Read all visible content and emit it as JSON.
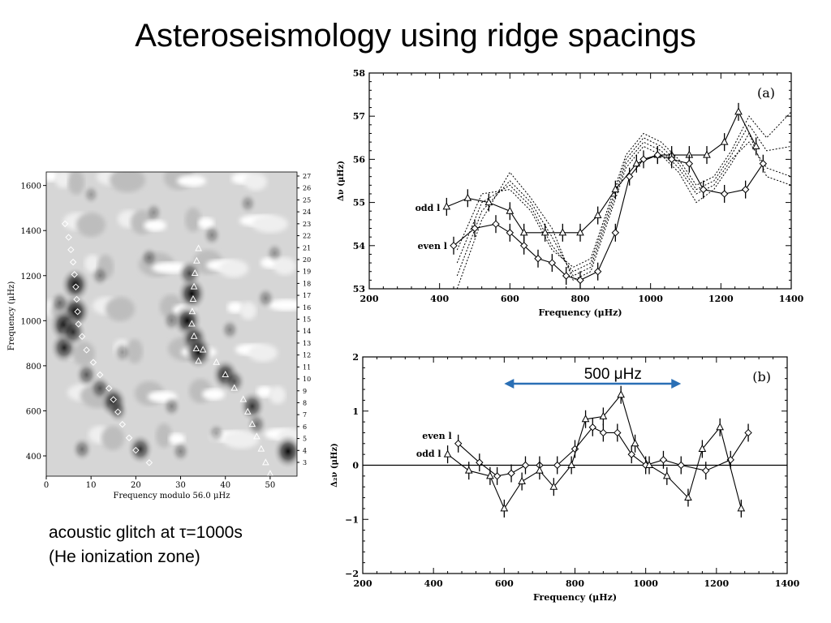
{
  "slide": {
    "title": "Asteroseismology using ridge spacings"
  },
  "caption": {
    "line1": "acoustic glitch at τ=1000s",
    "line2": "(He ionization zone)"
  },
  "colors": {
    "arrow": "#2a6fb5",
    "ink": "#000000"
  },
  "chart_data": [
    {
      "id": "echelle",
      "type": "heatmap",
      "xlabel": "Frequency modulo 56.0 μHz",
      "ylabel": "Frequency (μHz)",
      "xlim": [
        0,
        56
      ],
      "ylim": [
        310,
        1660
      ],
      "xticks": [
        "0",
        "10",
        "20",
        "30",
        "40",
        "50"
      ],
      "yticks": [
        "400",
        "600",
        "800",
        "1000",
        "1200",
        "1400",
        "1600"
      ],
      "right_ticks": [
        "3",
        "4",
        "5",
        "6",
        "7",
        "8",
        "9",
        "10",
        "11",
        "12",
        "13",
        "14",
        "15",
        "16",
        "17",
        "18",
        "19",
        "20",
        "21",
        "22",
        "23",
        "24",
        "25",
        "26",
        "27"
      ],
      "series": [
        {
          "marker": "diamond",
          "x": [
            4.2,
            5,
            5.5,
            6,
            6.3,
            6.6,
            6.8,
            7,
            7.2,
            8,
            9,
            10.5,
            12,
            14,
            15,
            16,
            17,
            18.5,
            20,
            23
          ],
          "y": [
            1430,
            1370,
            1315,
            1260,
            1205,
            1150,
            1095,
            1040,
            985,
            930,
            870,
            815,
            760,
            700,
            650,
            595,
            540,
            480,
            425,
            370
          ]
        },
        {
          "marker": "triangle",
          "x": [
            34,
            33.6,
            33.2,
            33,
            32.8,
            32.6,
            32.5,
            33,
            33.5,
            34,
            35,
            38,
            40,
            42,
            44,
            45,
            46,
            47,
            48,
            49,
            50
          ],
          "y": [
            1320,
            1265,
            1210,
            1150,
            1095,
            1040,
            985,
            930,
            875,
            820,
            870,
            815,
            760,
            700,
            650,
            595,
            540,
            485,
            430,
            370,
            320
          ]
        }
      ],
      "blobs": [
        {
          "x": 6.5,
          "y": 1160,
          "v": 1
        },
        {
          "x": 6.5,
          "y": 1040,
          "v": 1
        },
        {
          "x": 4,
          "y": 980,
          "v": 1
        },
        {
          "x": 4,
          "y": 880,
          "v": 0.9
        },
        {
          "x": 6,
          "y": 950,
          "v": 0.8
        },
        {
          "x": 9,
          "y": 760,
          "v": 0.6
        },
        {
          "x": 12,
          "y": 700,
          "v": 0.6
        },
        {
          "x": 15,
          "y": 640,
          "v": 0.9
        },
        {
          "x": 16,
          "y": 600,
          "v": 0.5
        },
        {
          "x": 21,
          "y": 430,
          "v": 0.8
        },
        {
          "x": 32.5,
          "y": 1120,
          "v": 1
        },
        {
          "x": 31.5,
          "y": 1000,
          "v": 1
        },
        {
          "x": 33,
          "y": 920,
          "v": 0.9
        },
        {
          "x": 34,
          "y": 860,
          "v": 1
        },
        {
          "x": 32,
          "y": 1210,
          "v": 0.7
        },
        {
          "x": 40,
          "y": 760,
          "v": 0.9
        },
        {
          "x": 42,
          "y": 730,
          "v": 0.6
        },
        {
          "x": 46,
          "y": 620,
          "v": 0.8
        },
        {
          "x": 47,
          "y": 540,
          "v": 0.5
        },
        {
          "x": 54,
          "y": 420,
          "v": 1
        },
        {
          "x": 3,
          "y": 1080,
          "v": 0.5
        },
        {
          "x": 28,
          "y": 1000,
          "v": 0.4
        },
        {
          "x": 37,
          "y": 1380,
          "v": 0.4
        },
        {
          "x": 12,
          "y": 1200,
          "v": 0.4
        },
        {
          "x": 23,
          "y": 1280,
          "v": 0.4
        },
        {
          "x": 49,
          "y": 1100,
          "v": 0.4
        },
        {
          "x": 51,
          "y": 1300,
          "v": 0.35
        },
        {
          "x": 28,
          "y": 620,
          "v": 0.4
        },
        {
          "x": 17,
          "y": 860,
          "v": 0.4
        },
        {
          "x": 41,
          "y": 960,
          "v": 0.4
        },
        {
          "x": 24,
          "y": 1480,
          "v": 0.35
        },
        {
          "x": 45,
          "y": 1520,
          "v": 0.35
        },
        {
          "x": 10,
          "y": 1560,
          "v": 0.3
        },
        {
          "x": 30,
          "y": 420,
          "v": 0.4
        },
        {
          "x": 38,
          "y": 500,
          "v": 0.35
        },
        {
          "x": 8,
          "y": 430,
          "v": 0.5
        }
      ]
    },
    {
      "id": "a",
      "type": "line",
      "panel_label": "(a)",
      "xlabel": "Frequency (μHz)",
      "ylabel": "Δν (μHz)",
      "xlim": [
        200,
        1400
      ],
      "ylim": [
        53,
        58
      ],
      "xticks": [
        "200",
        "400",
        "600",
        "800",
        "1000",
        "1200",
        "1400"
      ],
      "yticks": [
        "53",
        "54",
        "55",
        "56",
        "57",
        "58"
      ],
      "series": [
        {
          "name": "odd l",
          "marker": "triangle",
          "x": [
            420,
            480,
            540,
            600,
            640,
            700,
            750,
            800,
            850,
            900,
            960,
            1020,
            1060,
            1110,
            1160,
            1210,
            1250,
            1300
          ],
          "y": [
            54.9,
            55.1,
            55.0,
            54.8,
            54.3,
            54.3,
            54.3,
            54.3,
            54.7,
            55.3,
            55.9,
            56.1,
            56.1,
            56.1,
            56.1,
            56.4,
            57.1,
            56.3
          ]
        },
        {
          "name": "even l",
          "marker": "diamond",
          "x": [
            440,
            500,
            560,
            600,
            640,
            680,
            720,
            760,
            800,
            850,
            900,
            940,
            980,
            1020,
            1060,
            1110,
            1150,
            1210,
            1270,
            1320
          ],
          "y": [
            54.0,
            54.4,
            54.5,
            54.3,
            54.0,
            53.7,
            53.6,
            53.3,
            53.2,
            53.4,
            54.3,
            55.6,
            56.0,
            56.1,
            56.0,
            55.9,
            55.3,
            55.2,
            55.3,
            55.9
          ]
        }
      ],
      "model_curves": [
        {
          "x": [
            450,
            520,
            600,
            660,
            720,
            780,
            830,
            880,
            930,
            980,
            1030,
            1080,
            1130,
            1180,
            1230,
            1280,
            1330,
            1400
          ],
          "y": [
            53.0,
            54.6,
            55.7,
            55.1,
            54.4,
            53.2,
            53.4,
            54.6,
            55.8,
            56.3,
            56.1,
            55.7,
            55.0,
            55.3,
            55.9,
            56.6,
            55.6,
            55.4
          ]
        },
        {
          "x": [
            450,
            520,
            600,
            660,
            720,
            780,
            830,
            880,
            930,
            980,
            1030,
            1080,
            1130,
            1180,
            1230,
            1280,
            1330,
            1400
          ],
          "y": [
            53.3,
            54.8,
            55.5,
            55.0,
            54.2,
            53.3,
            53.5,
            54.7,
            55.9,
            56.4,
            56.2,
            55.8,
            55.2,
            55.4,
            56.0,
            56.4,
            55.8,
            55.6
          ]
        },
        {
          "x": [
            450,
            520,
            600,
            660,
            720,
            780,
            830,
            880,
            930,
            980,
            1030,
            1080,
            1130,
            1180,
            1230,
            1280,
            1330,
            1400
          ],
          "y": [
            53.6,
            55.0,
            55.4,
            54.9,
            54.0,
            53.4,
            53.6,
            54.8,
            56.0,
            56.5,
            56.3,
            55.9,
            55.3,
            55.5,
            56.1,
            56.8,
            56.2,
            56.3
          ]
        },
        {
          "x": [
            450,
            520,
            600,
            660,
            720,
            780,
            830,
            880,
            930,
            980,
            1030,
            1080,
            1130,
            1180,
            1230,
            1280,
            1330,
            1400
          ],
          "y": [
            53.9,
            55.2,
            55.3,
            54.8,
            53.9,
            53.5,
            53.7,
            54.9,
            56.1,
            56.6,
            56.4,
            56.0,
            55.4,
            55.6,
            56.2,
            57.0,
            56.5,
            57.1
          ]
        }
      ]
    },
    {
      "id": "b",
      "type": "line",
      "panel_label": "(b)",
      "xlabel": "Frequency (μHz)",
      "ylabel": "Δ₂ν (μHz)",
      "xlim": [
        200,
        1400
      ],
      "ylim": [
        -2,
        2
      ],
      "xticks": [
        "200",
        "400",
        "600",
        "800",
        "1000",
        "1200",
        "1400"
      ],
      "yticks": [
        "−2",
        "−1",
        "0",
        "1",
        "2"
      ],
      "annotation": {
        "label": "500 μHz",
        "x1": 600,
        "x2": 1100
      },
      "series": [
        {
          "name": "even l",
          "marker": "diamond",
          "x": [
            470,
            530,
            580,
            620,
            660,
            700,
            750,
            800,
            850,
            880,
            920,
            960,
            1000,
            1050,
            1100,
            1170,
            1240,
            1290
          ],
          "y": [
            0.4,
            0.05,
            -0.2,
            -0.15,
            0.0,
            0.0,
            0.0,
            0.3,
            0.7,
            0.6,
            0.6,
            0.2,
            0.0,
            0.1,
            0.0,
            -0.1,
            0.1,
            0.6
          ]
        },
        {
          "name": "odd l",
          "marker": "triangle",
          "x": [
            440,
            500,
            560,
            600,
            650,
            700,
            740,
            790,
            830,
            880,
            930,
            970,
            1010,
            1060,
            1120,
            1160,
            1210,
            1270
          ],
          "y": [
            0.2,
            -0.1,
            -0.2,
            -0.8,
            -0.3,
            -0.1,
            -0.4,
            0.0,
            0.85,
            0.9,
            1.3,
            0.4,
            0.0,
            -0.2,
            -0.6,
            0.3,
            0.7,
            -0.8
          ]
        }
      ]
    }
  ]
}
